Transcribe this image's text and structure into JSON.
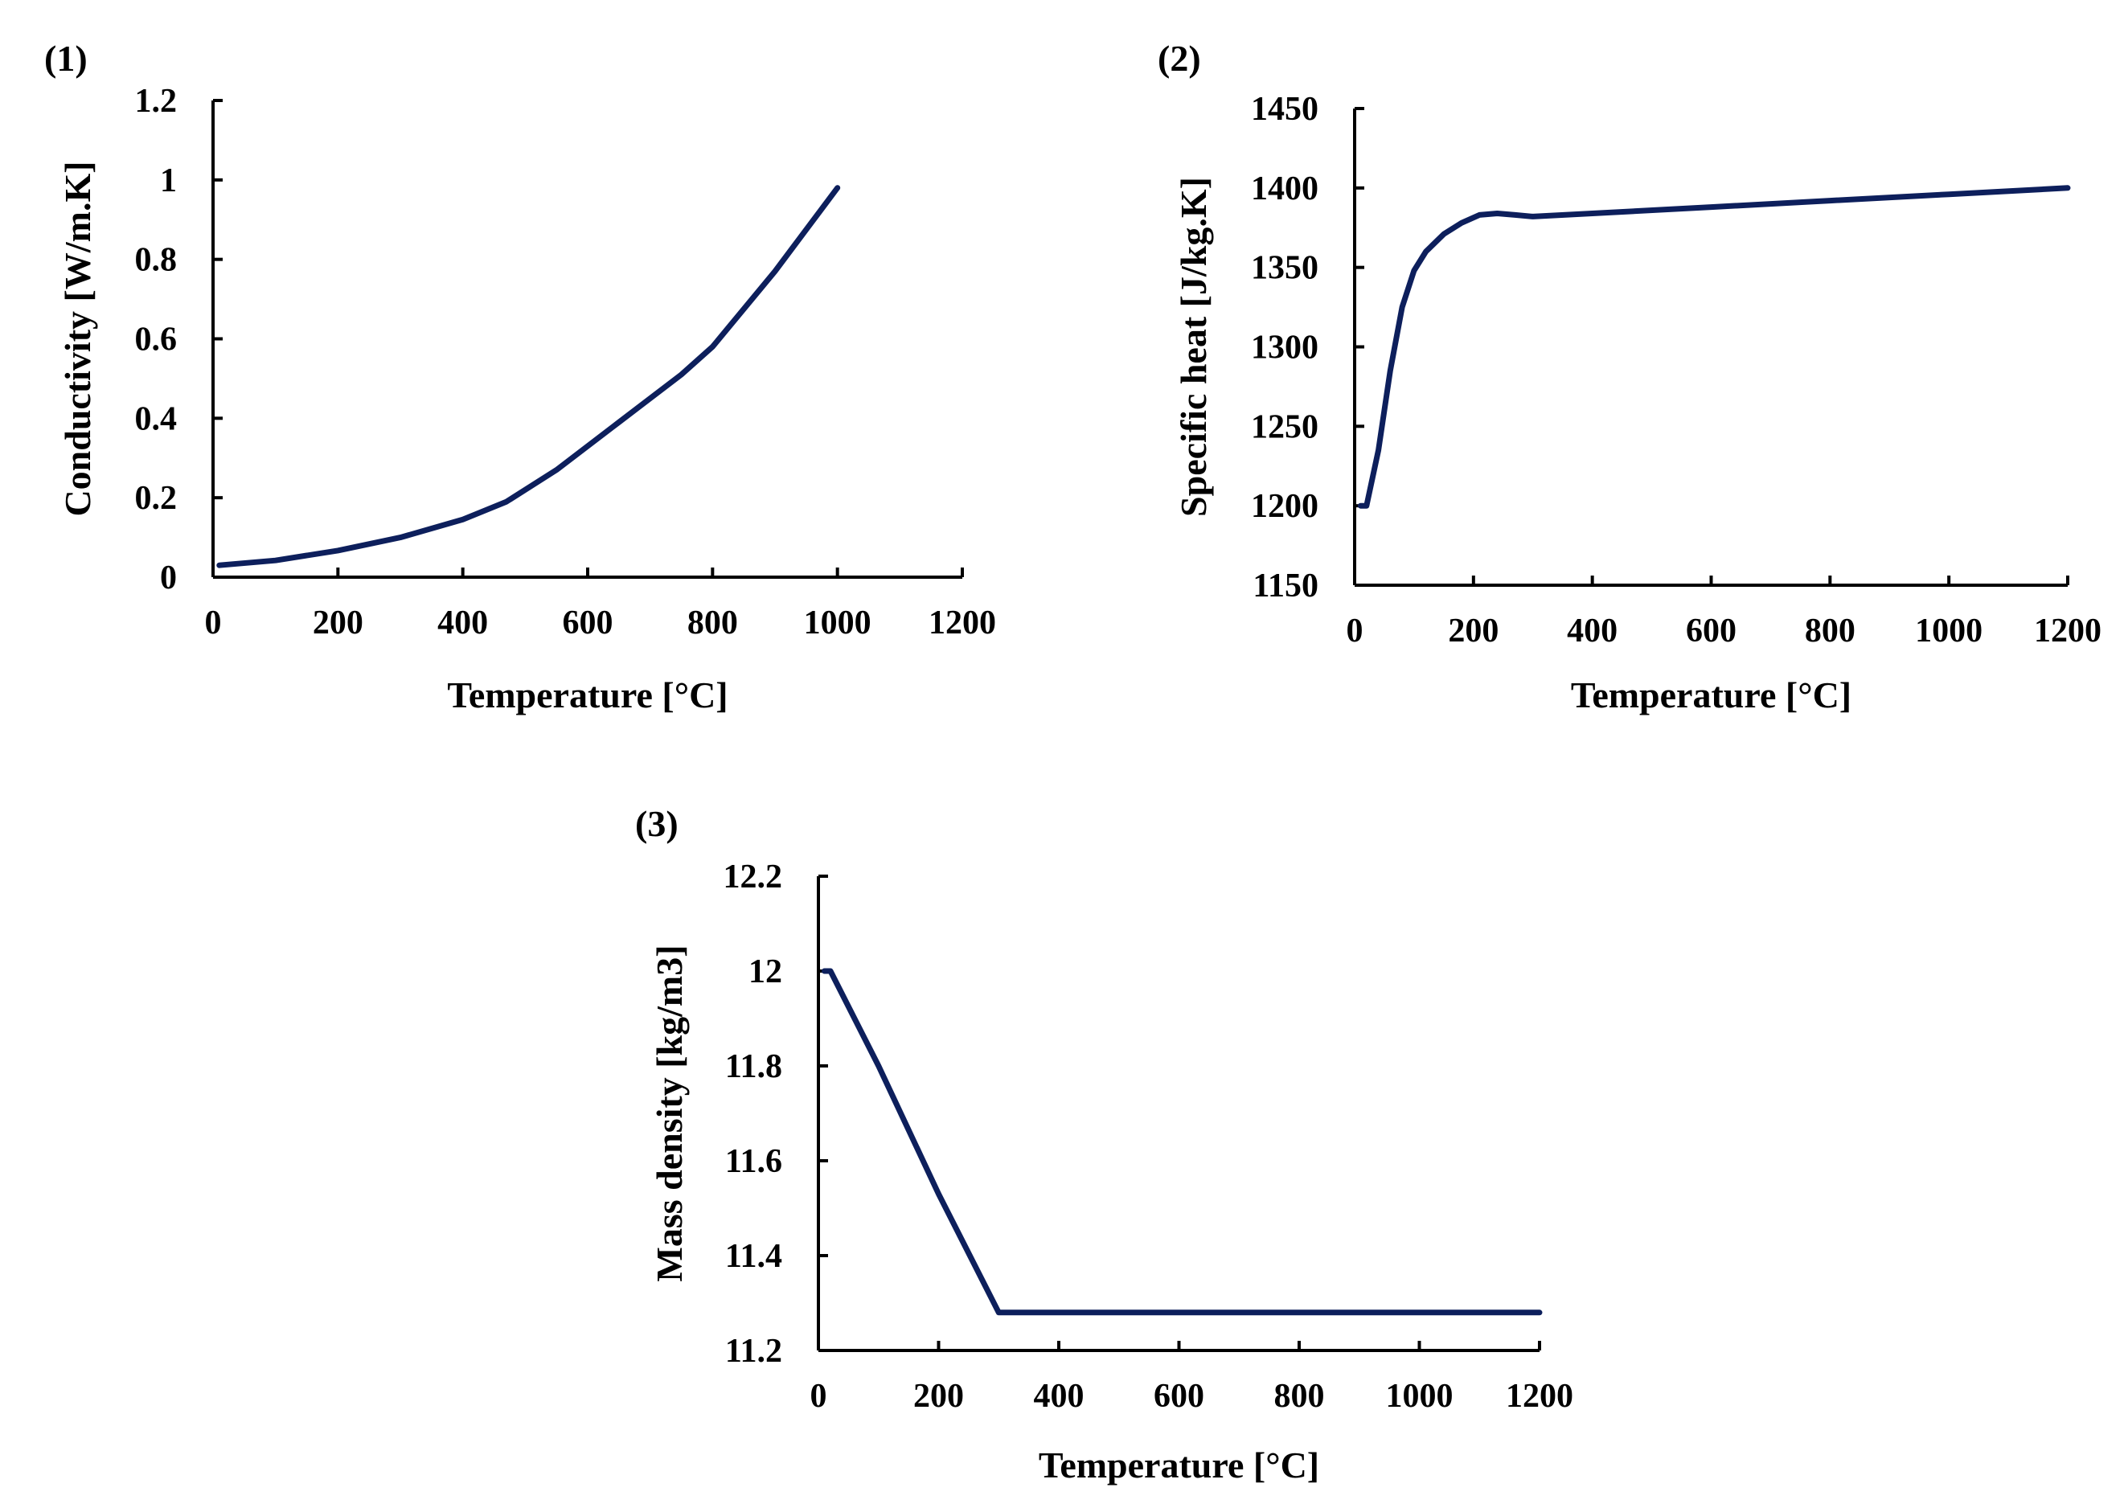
{
  "colors": {
    "series": "#0d1f5c",
    "axis": "#000000",
    "background": "#ffffff"
  },
  "chart_data": [
    {
      "type": "line",
      "panel_label": "(1)",
      "title": "",
      "xlabel": "Temperature [°C]",
      "ylabel": "Conductivity [W/m.K]",
      "xlim": [
        0,
        1200
      ],
      "ylim": [
        0,
        1.2
      ],
      "xticks": [
        0,
        200,
        400,
        600,
        800,
        1000,
        1200
      ],
      "xtick_labels": [
        "0",
        "200",
        "400",
        "600",
        "800",
        "1000",
        "1200"
      ],
      "yticks": [
        0,
        0.2,
        0.4,
        0.6,
        0.8,
        1,
        1.2
      ],
      "ytick_labels": [
        "0",
        "0.2",
        "0.4",
        "0.6",
        "0.8",
        "1",
        "1.2"
      ],
      "grid": false,
      "series": [
        {
          "name": "Conductivity",
          "x": [
            10,
            100,
            200,
            300,
            400,
            470,
            550,
            650,
            750,
            800,
            900,
            1000
          ],
          "y": [
            0.03,
            0.042,
            0.067,
            0.1,
            0.145,
            0.19,
            0.27,
            0.39,
            0.51,
            0.58,
            0.77,
            0.98
          ]
        }
      ]
    },
    {
      "type": "line",
      "panel_label": "(2)",
      "title": "",
      "xlabel": "Temperature [°C]",
      "ylabel": "Specific heat [J/kg.K]",
      "xlim": [
        0,
        1200
      ],
      "ylim": [
        1150,
        1450
      ],
      "xticks": [
        0,
        200,
        400,
        600,
        800,
        1000,
        1200
      ],
      "xtick_labels": [
        "0",
        "200",
        "400",
        "600",
        "800",
        "1000",
        "1200"
      ],
      "yticks": [
        1150,
        1200,
        1250,
        1300,
        1350,
        1400,
        1450
      ],
      "ytick_labels": [
        "1150",
        "1200",
        "1250",
        "1300",
        "1350",
        "1400",
        "1450"
      ],
      "grid": false,
      "series": [
        {
          "name": "Specific heat",
          "x": [
            10,
            20,
            40,
            60,
            80,
            100,
            120,
            150,
            180,
            210,
            240,
            270,
            300,
            400,
            600,
            800,
            1000,
            1200
          ],
          "y": [
            1200,
            1200,
            1235,
            1285,
            1325,
            1348,
            1360,
            1371,
            1378,
            1383,
            1384,
            1383,
            1382,
            1384,
            1388,
            1392,
            1396,
            1400
          ]
        }
      ]
    },
    {
      "type": "line",
      "panel_label": "(3)",
      "title": "",
      "xlabel": "Temperature [°C]",
      "ylabel": "Mass density [kg/m3]",
      "xlim": [
        0,
        1200
      ],
      "ylim": [
        11.2,
        12.2
      ],
      "xticks": [
        0,
        200,
        400,
        600,
        800,
        1000,
        1200
      ],
      "xtick_labels": [
        "0",
        "200",
        "400",
        "600",
        "800",
        "1000",
        "1200"
      ],
      "yticks": [
        11.2,
        11.4,
        11.6,
        11.8,
        12,
        12.2
      ],
      "ytick_labels": [
        "11.2",
        "11.4",
        "11.6",
        "11.8",
        "12",
        "12.2"
      ],
      "grid": false,
      "series": [
        {
          "name": "Mass density",
          "x": [
            10,
            20,
            100,
            200,
            300,
            1200
          ],
          "y": [
            12,
            12,
            11.8,
            11.53,
            11.28,
            11.28
          ]
        }
      ]
    }
  ]
}
